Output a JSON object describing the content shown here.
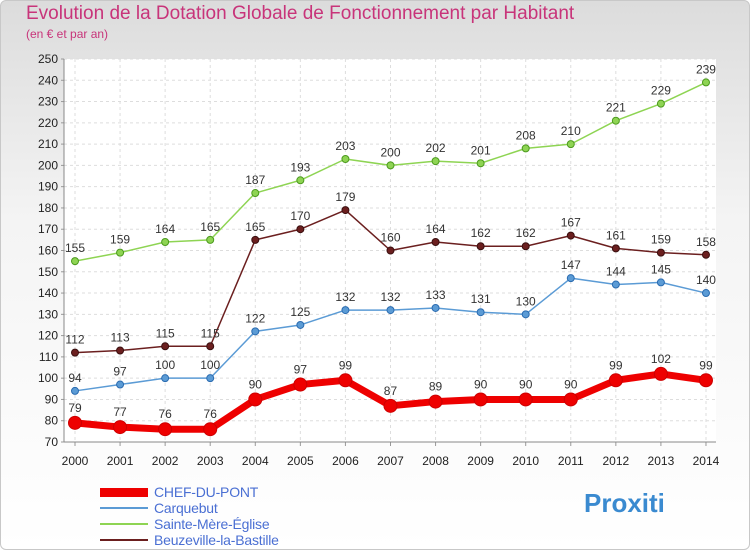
{
  "title": "Evolution de la Dotation Globale de Fonctionnement par Habitant",
  "subtitle": "(en € et par an)",
  "logo": "Proxiti",
  "chart_data": {
    "type": "line",
    "title": "Evolution de la Dotation Globale de Fonctionnement par Habitant",
    "subtitle": "(en € et par an)",
    "xlabel": "",
    "ylabel": "",
    "x": [
      2000,
      2001,
      2002,
      2003,
      2004,
      2005,
      2006,
      2007,
      2008,
      2009,
      2010,
      2011,
      2012,
      2013,
      2014
    ],
    "yticks": [
      70,
      80,
      90,
      100,
      110,
      120,
      130,
      140,
      150,
      160,
      170,
      180,
      190,
      200,
      210,
      220,
      230,
      240,
      250
    ],
    "ylim": [
      70,
      250
    ],
    "grid": true,
    "legend_position": "bottom-left",
    "series": [
      {
        "name": "CHEF-DU-PONT",
        "color": "#ee0000",
        "values": [
          79,
          77,
          76,
          76,
          90,
          97,
          99,
          87,
          89,
          90,
          90,
          90,
          99,
          102,
          99
        ]
      },
      {
        "name": "Carquebut",
        "color": "#5b9bd5",
        "values": [
          94,
          97,
          100,
          100,
          122,
          125,
          132,
          132,
          133,
          131,
          130,
          147,
          144,
          145,
          140
        ]
      },
      {
        "name": "Sainte-Mère-Église",
        "color": "#8ed453",
        "values": [
          155,
          159,
          164,
          165,
          187,
          193,
          203,
          200,
          202,
          201,
          208,
          210,
          221,
          229,
          239
        ]
      },
      {
        "name": "Beuzeville-la-Bastille",
        "color": "#6b1f1f",
        "values": [
          112,
          113,
          115,
          115,
          165,
          170,
          179,
          160,
          164,
          162,
          162,
          167,
          161,
          159,
          158
        ]
      }
    ]
  }
}
